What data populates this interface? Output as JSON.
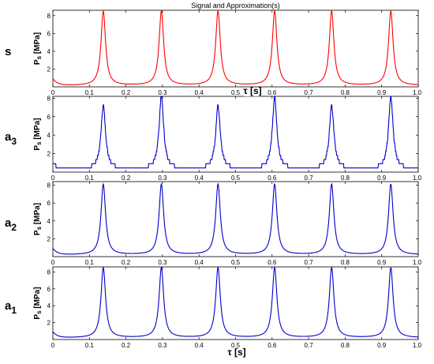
{
  "chart_data": [
    {
      "type": "line",
      "title": "Signal and Approximation(s)",
      "row_label": "s",
      "ylabel": "P_S [MPa]",
      "xlabel": "τ [s]",
      "xlim": [
        0,
        1
      ],
      "ylim": [
        0,
        8.6
      ],
      "xticks": [
        "0",
        "0.1",
        "0.2",
        "0.3",
        "0.4",
        "0.5",
        "0.6",
        "0.7",
        "0.8",
        "0.9",
        "1.0"
      ],
      "yticks": [
        "2",
        "4",
        "6",
        "8"
      ],
      "color": "#ff0000",
      "peak_times": [
        0.138,
        0.297,
        0.452,
        0.607,
        0.763,
        0.925
      ],
      "peak_value": 8.5,
      "baseline_value": 0.15,
      "start_value": 0.9
    },
    {
      "type": "line",
      "row_label": "a3",
      "ylabel": "P_S [MPa]",
      "xlim": [
        0,
        1
      ],
      "ylim": [
        0,
        8.2
      ],
      "xticks": [
        "0",
        "0.1",
        "0.2",
        "0.3",
        "0.4",
        "0.5",
        "0.6",
        "0.7",
        "0.8",
        "0.9",
        "1.0"
      ],
      "yticks": [
        "2",
        "4",
        "6",
        "8"
      ],
      "color": "#0000cc",
      "peak_times": [
        0.138,
        0.297,
        0.452,
        0.607,
        0.763,
        0.925
      ],
      "peak_values": [
        7.2,
        8.2,
        7.2,
        8.0,
        7.2,
        8.2
      ],
      "baseline_value": 0.3,
      "start_value": 1.0
    },
    {
      "type": "line",
      "row_label": "a2",
      "ylabel": "P_S [MPa]",
      "xlim": [
        0,
        1
      ],
      "ylim": [
        0,
        8.4
      ],
      "xticks": [
        "0",
        "0.1",
        "0.2",
        "0.3",
        "0.4",
        "0.5",
        "0.6",
        "0.7",
        "0.8",
        "0.9",
        "1.0"
      ],
      "yticks": [
        "2",
        "4",
        "6",
        "8"
      ],
      "color": "#0000cc",
      "peak_times": [
        0.138,
        0.297,
        0.452,
        0.607,
        0.763,
        0.925
      ],
      "peak_value": 8.1,
      "baseline_value": 0.2,
      "start_value": 0.9
    },
    {
      "type": "line",
      "row_label": "a1",
      "ylabel": "P_S [MPa]",
      "xlabel": "τ [s]",
      "xlim": [
        0,
        1
      ],
      "ylim": [
        0,
        8.6
      ],
      "xticks": [
        "0",
        "0.1",
        "0.2",
        "0.3",
        "0.4",
        "0.5",
        "0.6",
        "0.7",
        "0.8",
        "0.9",
        "1.0"
      ],
      "yticks": [
        "2",
        "4",
        "6",
        "8"
      ],
      "color": "#0000cc",
      "peak_times": [
        0.138,
        0.297,
        0.452,
        0.607,
        0.763,
        0.925
      ],
      "peak_value": 8.5,
      "baseline_value": 0.2,
      "start_value": 0.9
    }
  ]
}
